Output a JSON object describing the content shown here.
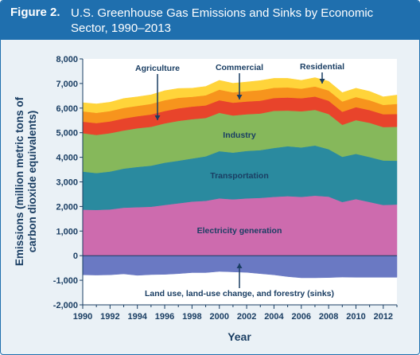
{
  "figure": {
    "label": "Figure 2.",
    "title": "U.S. Greenhouse Gas Emissions and Sinks by Economic Sector, 1990–2013"
  },
  "chart_data": {
    "type": "area",
    "stacked": true,
    "xlabel": "Year",
    "ylabel_line1": "Emissions (million metric tons of",
    "ylabel_line2": "carbon dioxide equivalents)",
    "ylim": [
      -2000,
      8000
    ],
    "xlim": [
      1990,
      2013
    ],
    "yticks": [
      8000,
      7000,
      6000,
      5000,
      4000,
      3000,
      2000,
      1000,
      0,
      -1000,
      -2000
    ],
    "ytick_labels": [
      "8,000",
      "7,000",
      "6,000",
      "5,000",
      "4,000",
      "3,000",
      "2,000",
      "1,000",
      "0",
      "-1,000",
      "-2,000"
    ],
    "xticks": [
      1990,
      1992,
      1994,
      1996,
      1998,
      2000,
      2002,
      2004,
      2006,
      2008,
      2010,
      2012
    ],
    "x": [
      1990,
      1991,
      1992,
      1993,
      1994,
      1995,
      1996,
      1997,
      1998,
      1999,
      2000,
      2001,
      2002,
      2003,
      2004,
      2005,
      2006,
      2007,
      2008,
      2009,
      2010,
      2011,
      2012,
      2013
    ],
    "series": [
      {
        "name": "Electricity generation",
        "color": "#cd6bae",
        "values": [
          1870,
          1860,
          1880,
          1950,
          1970,
          1990,
          2060,
          2130,
          2200,
          2230,
          2330,
          2290,
          2330,
          2350,
          2390,
          2420,
          2390,
          2440,
          2400,
          2180,
          2300,
          2180,
          2060,
          2080
        ]
      },
      {
        "name": "Transportation",
        "color": "#2a8a9f",
        "values": [
          1550,
          1500,
          1540,
          1590,
          1640,
          1670,
          1720,
          1730,
          1750,
          1810,
          1920,
          1900,
          1930,
          1940,
          1990,
          2030,
          2010,
          2040,
          1930,
          1840,
          1840,
          1830,
          1810,
          1780
        ]
      },
      {
        "name": "Industry",
        "color": "#86b85b",
        "values": [
          1560,
          1550,
          1560,
          1550,
          1570,
          1580,
          1600,
          1620,
          1600,
          1560,
          1560,
          1510,
          1490,
          1490,
          1510,
          1450,
          1470,
          1450,
          1430,
          1300,
          1370,
          1390,
          1360,
          1380
        ]
      },
      {
        "name": "Agriculture",
        "color": "#e8442b",
        "values": [
          470,
          480,
          480,
          490,
          490,
          500,
          500,
          510,
          510,
          510,
          510,
          520,
          520,
          520,
          520,
          530,
          530,
          540,
          540,
          530,
          530,
          520,
          520,
          520
        ]
      },
      {
        "name": "Commercial",
        "color": "#f7941d",
        "values": [
          420,
          420,
          420,
          430,
          420,
          430,
          440,
          430,
          400,
          410,
          430,
          420,
          420,
          430,
          420,
          410,
          390,
          410,
          420,
          420,
          410,
          400,
          380,
          410
        ]
      },
      {
        "name": "Residential",
        "color": "#ffd43a",
        "values": [
          350,
          360,
          360,
          380,
          370,
          370,
          390,
          380,
          350,
          360,
          380,
          370,
          370,
          390,
          380,
          370,
          340,
          360,
          370,
          360,
          360,
          360,
          330,
          360
        ]
      },
      {
        "name": "Land use, land-use change, and forestry (sinks)",
        "color": "#6a79c3",
        "values": [
          -780,
          -790,
          -780,
          -740,
          -800,
          -770,
          -760,
          -730,
          -690,
          -690,
          -640,
          -660,
          -680,
          -730,
          -780,
          -850,
          -900,
          -900,
          -890,
          -870,
          -880,
          -880,
          -880,
          -880
        ]
      }
    ]
  }
}
